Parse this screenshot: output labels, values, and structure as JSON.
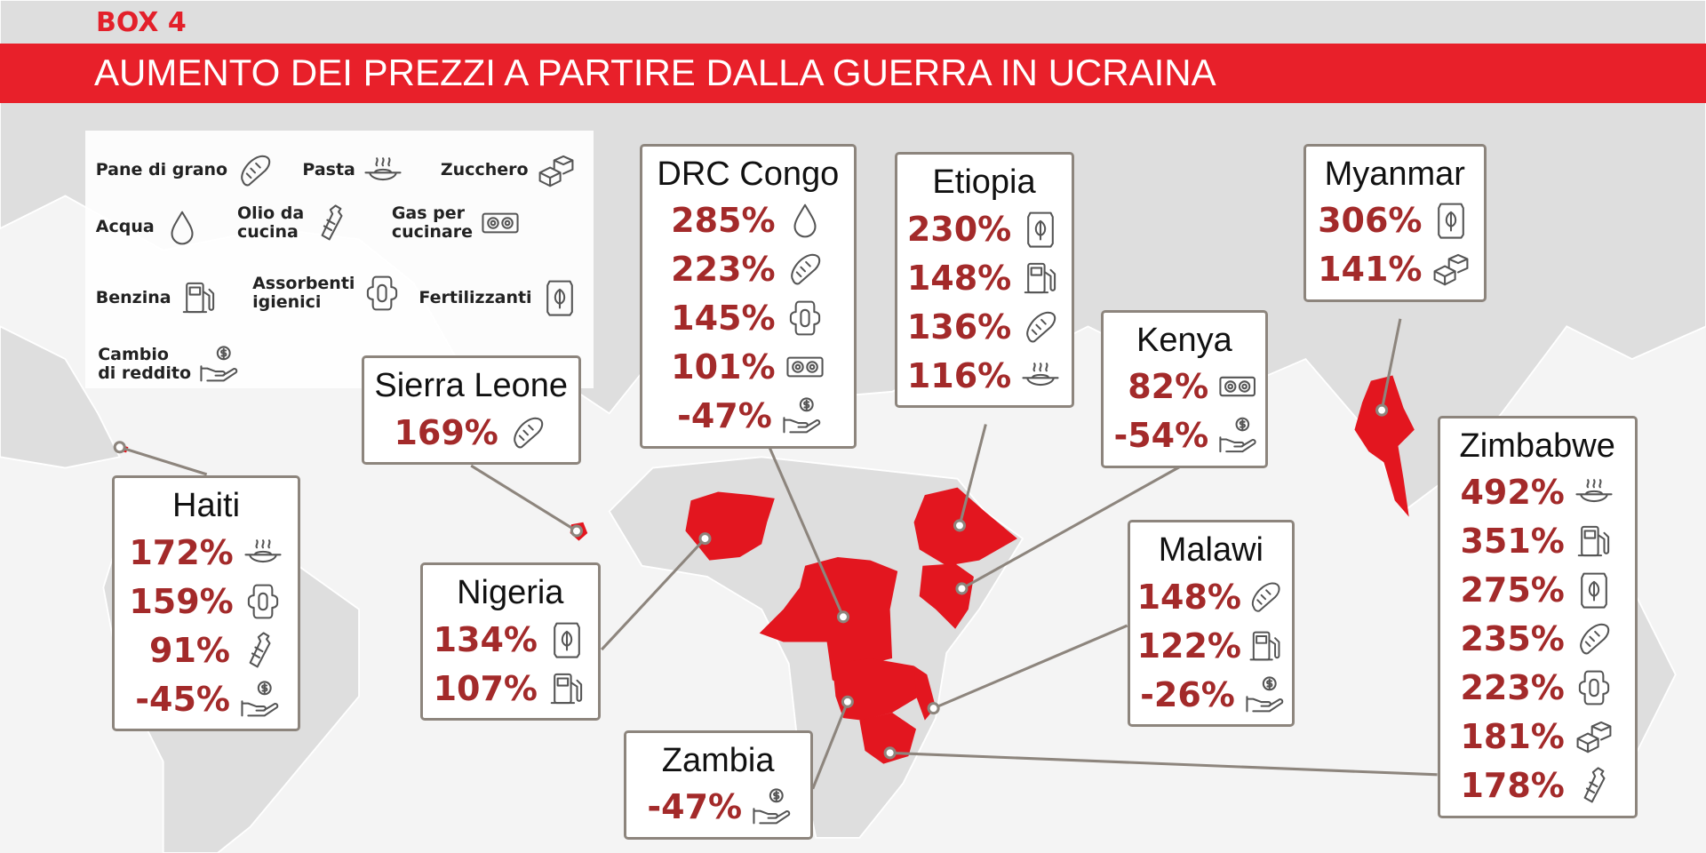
{
  "header": {
    "box_label": "BOX 4",
    "title": "AUMENTO DEI PREZZI A PARTIRE DALLA GUERRA IN UCRAINA"
  },
  "legend": [
    "Pane di grano",
    "Pasta",
    "Zucchero",
    "Acqua",
    "Olio da\ncucina",
    "Gas per\ncucinare",
    "Benzina",
    "Assorbenti\nigienici",
    "Fertilizzanti",
    "Cambio\ndi reddito"
  ],
  "countries": [
    {
      "name": "Haiti",
      "items": [
        {
          "value": "172%",
          "item": "Pasta"
        },
        {
          "value": "159%",
          "item": "Assorbenti\nigienici"
        },
        {
          "value": "91%",
          "item": "Olio da\ncucina"
        },
        {
          "value": "-45%",
          "item": "Cambio\ndi reddito"
        }
      ]
    },
    {
      "name": "Sierra Leone",
      "items": [
        {
          "value": "169%",
          "item": "Pane di grano"
        }
      ]
    },
    {
      "name": "DRC Congo",
      "items": [
        {
          "value": "285%",
          "item": "Acqua"
        },
        {
          "value": "223%",
          "item": "Pane di grano"
        },
        {
          "value": "145%",
          "item": "Assorbenti\nigienici"
        },
        {
          "value": "101%",
          "item": "Gas per\ncucinare"
        },
        {
          "value": "-47%",
          "item": "Cambio\ndi reddito"
        }
      ]
    },
    {
      "name": "Etiopia",
      "items": [
        {
          "value": "230%",
          "item": "Fertilizzanti"
        },
        {
          "value": "148%",
          "item": "Benzina"
        },
        {
          "value": "136%",
          "item": "Pane di grano"
        },
        {
          "value": "116%",
          "item": "Pasta"
        }
      ]
    },
    {
      "name": "Kenya",
      "items": [
        {
          "value": "82%",
          "item": "Gas per\ncucinare"
        },
        {
          "value": "-54%",
          "item": "Cambio\ndi reddito"
        }
      ]
    },
    {
      "name": "Myanmar",
      "items": [
        {
          "value": "306%",
          "item": "Fertilizzanti"
        },
        {
          "value": "141%",
          "item": "Zucchero"
        }
      ]
    },
    {
      "name": "Nigeria",
      "items": [
        {
          "value": "134%",
          "item": "Fertilizzanti"
        },
        {
          "value": "107%",
          "item": "Benzina"
        }
      ]
    },
    {
      "name": "Malawi",
      "items": [
        {
          "value": "148%",
          "item": "Pane di grano"
        },
        {
          "value": "122%",
          "item": "Benzina"
        },
        {
          "value": "-26%",
          "item": "Cambio\ndi reddito"
        }
      ]
    },
    {
      "name": "Zambia",
      "items": [
        {
          "value": "-47%",
          "item": "Cambio\ndi reddito"
        }
      ]
    },
    {
      "name": "Zimbabwe",
      "items": [
        {
          "value": "492%",
          "item": "Pasta"
        },
        {
          "value": "351%",
          "item": "Benzina"
        },
        {
          "value": "275%",
          "item": "Fertilizzanti"
        },
        {
          "value": "235%",
          "item": "Pane di grano"
        },
        {
          "value": "223%",
          "item": "Assorbenti\nigienici"
        },
        {
          "value": "181%",
          "item": "Zucchero"
        },
        {
          "value": "178%",
          "item": "Olio da\ncucina"
        }
      ]
    }
  ]
}
